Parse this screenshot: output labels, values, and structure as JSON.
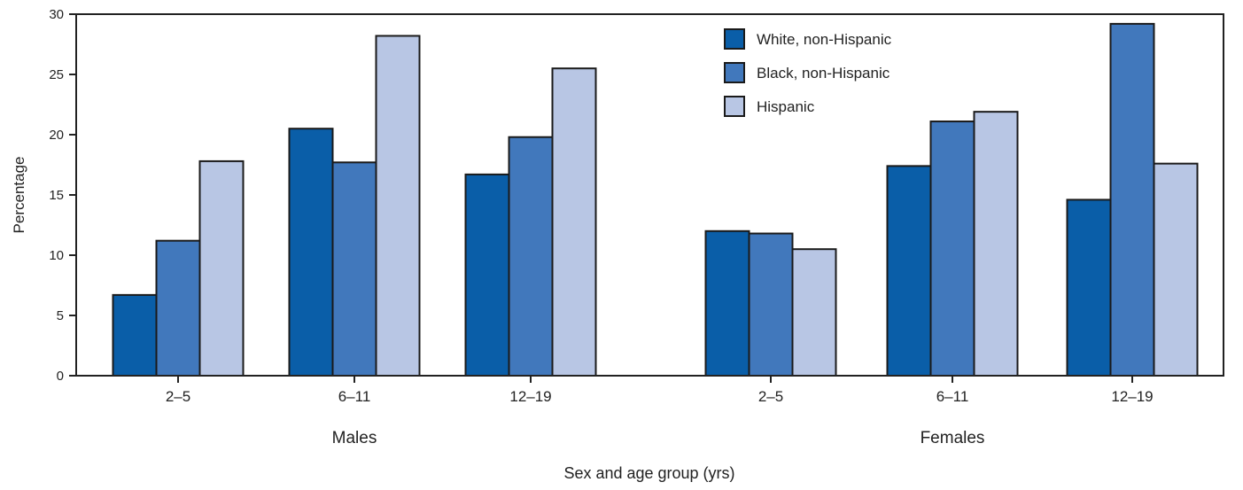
{
  "chart_data": {
    "type": "bar",
    "ylabel": "Percentage",
    "xlabel": "Sex and age group (yrs)",
    "ylim": [
      0,
      30
    ],
    "yticks": [
      0,
      5,
      10,
      15,
      20,
      25,
      30
    ],
    "grid": false,
    "legend_position": "top-right",
    "groups": [
      {
        "label": "Males",
        "categories": [
          "2–5",
          "6–11",
          "12–19"
        ]
      },
      {
        "label": "Females",
        "categories": [
          "2–5",
          "6–11",
          "12–19"
        ]
      }
    ],
    "series": [
      {
        "name": "White, non-Hispanic",
        "color": "#0a5ea8",
        "values": [
          6.7,
          20.5,
          16.7,
          12.0,
          17.4,
          14.6
        ]
      },
      {
        "name": "Black, non-Hispanic",
        "color": "#4178bc",
        "values": [
          11.2,
          17.7,
          19.8,
          11.8,
          21.1,
          29.2
        ]
      },
      {
        "name": "Hispanic",
        "color": "#b8c6e4",
        "values": [
          17.8,
          28.2,
          25.5,
          10.5,
          21.9,
          17.6
        ]
      }
    ]
  }
}
